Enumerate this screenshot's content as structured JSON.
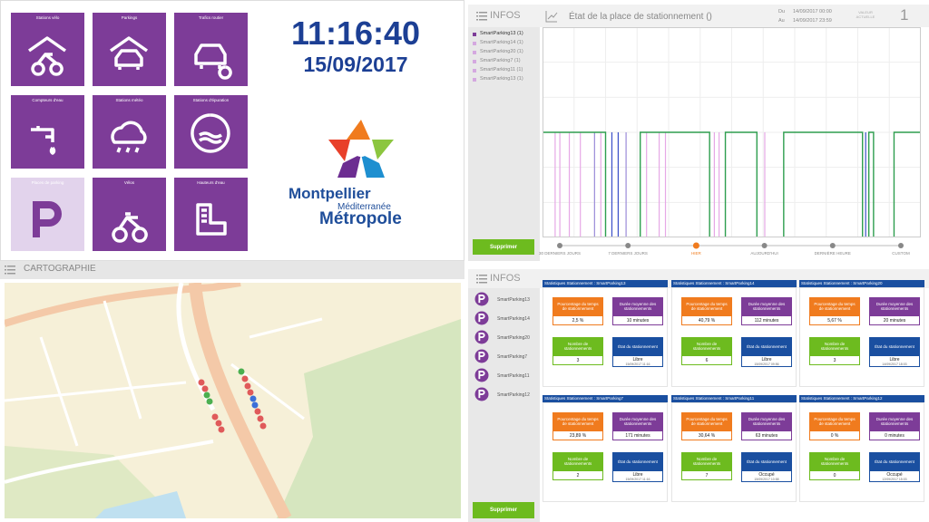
{
  "tiles": [
    "Stations vélo",
    "Parkings",
    "Trafics routier",
    "Compteurs d'eau",
    "Stations météo",
    "Stations d'épuration",
    "Places de parking",
    "Vélos",
    "Hauteurs d'eau"
  ],
  "selected_tile": 6,
  "clock": {
    "time": "11:16:40",
    "date": "15/09/2017"
  },
  "logo": {
    "line1": "Montpellier",
    "line2": "Méditerranée",
    "line3": "Métropole"
  },
  "map": {
    "title": "CARTOGRAPHIE"
  },
  "infos_top": {
    "title": "INFOS",
    "items": [
      "SmartParking13 (1)",
      "SmartParking14 (1)",
      "SmartParking20 (1)",
      "SmartParking7 (1)",
      "SmartParking11 (1)",
      "SmartParking13 (1)"
    ],
    "button": "Supprimer"
  },
  "state_chart": {
    "title": "État de la place de stationnement ()",
    "from_label": "Du",
    "from": "14/09/2017 00:00",
    "to_label": "Au",
    "to": "14/09/2017 23:59",
    "current_label": "VALEUR ACTUELLE",
    "current_value": 1,
    "xlim": [
      0,
      24
    ],
    "ylim": [
      0,
      2
    ],
    "color": "#2e9e4f",
    "x": [
      0,
      4.0,
      6.2,
      10.6,
      11.6,
      13.6,
      15.3,
      20.3,
      20.7,
      21.0,
      22.3,
      24
    ],
    "values": [
      1,
      0,
      1,
      0,
      1,
      0,
      1,
      0,
      1,
      0,
      1,
      1
    ],
    "events": [
      {
        "x": 0.8,
        "color": "#e6a8e6"
      },
      {
        "x": 1.1,
        "color": "#e6a8e6"
      },
      {
        "x": 1.7,
        "color": "#e6a8e6"
      },
      {
        "x": 2.4,
        "color": "#e6a8e6"
      },
      {
        "x": 3.3,
        "color": "#9a8ad8"
      },
      {
        "x": 3.7,
        "color": "#e6a8e6"
      },
      {
        "x": 4.4,
        "color": "#3b4fc8"
      },
      {
        "x": 4.8,
        "color": "#3b4fc8"
      },
      {
        "x": 5.3,
        "color": "#9a8ad8"
      },
      {
        "x": 6.6,
        "color": "#e6a8e6"
      },
      {
        "x": 7.4,
        "color": "#e6a8e6"
      },
      {
        "x": 7.8,
        "color": "#e6a8e6"
      },
      {
        "x": 10.9,
        "color": "#e6a8e6"
      },
      {
        "x": 11.2,
        "color": "#e6a8e6"
      },
      {
        "x": 14.1,
        "color": "#e6a8e6"
      },
      {
        "x": 20.5,
        "color": "#3b4fc8"
      }
    ],
    "ranges": [
      "30 DERNIERS JOURS",
      "7 DERNIERS JOURS",
      "HIER",
      "AUJOURD'HUI",
      "DERNIÈRE HEURE",
      "CUSTOM"
    ],
    "selected_range": 2
  },
  "infos_bottom": {
    "title": "INFOS",
    "items": [
      "SmartParking13",
      "SmartParking14",
      "SmartParking20",
      "SmartParking7",
      "SmartParking11",
      "SmartParking12"
    ],
    "button": "Supprimer",
    "stat_labels": {
      "percent": "Pourcentage du temps de stationnement",
      "duration": "Durée moyenne des stationnements",
      "count": "Nombre de stationnements",
      "state": "État du stationnement"
    },
    "cards": [
      {
        "title": "Statistiques Stationnement : SmartParking13",
        "percent": "2,5 %",
        "duration": "10 minutes",
        "count": 3,
        "state": "Libre",
        "since": "15/09/2017 11:16"
      },
      {
        "title": "Statistiques Stationnement : SmartParking14",
        "percent": "40,79 %",
        "duration": "112 minutes",
        "count": 6,
        "state": "Libre",
        "since": "15/09/2017 09:56"
      },
      {
        "title": "Statistiques Stationnement : SmartParking20",
        "percent": "5,67 %",
        "duration": "20 minutes",
        "count": 3,
        "state": "Libre",
        "since": "14/09/2017 18:03"
      },
      {
        "title": "Statistiques Stationnement : SmartParking7",
        "percent": "23,89 %",
        "duration": "171 minutes",
        "count": 2,
        "state": "Libre",
        "since": "15/09/2017 11:16"
      },
      {
        "title": "Statistiques Stationnement : SmartParking11",
        "percent": "30,64 %",
        "duration": "63 minutes",
        "count": 7,
        "state": "Occupé",
        "since": "15/09/2017 10:58"
      },
      {
        "title": "Statistiques Stationnement : SmartParking12",
        "percent": "0 %",
        "duration": "0 minutes",
        "count": 0,
        "state": "Occupé",
        "since": "12/09/2017 15:03"
      }
    ]
  }
}
